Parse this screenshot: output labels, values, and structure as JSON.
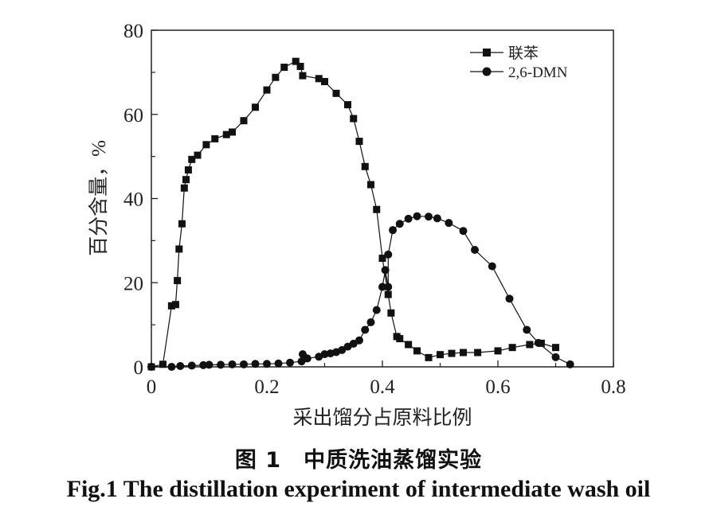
{
  "chart_data": {
    "type": "line",
    "xlabel": "采出馏分占原料比例",
    "ylabel": "百分含量，%",
    "xlim": [
      0,
      0.8
    ],
    "ylim": [
      0,
      80
    ],
    "x_ticks": [
      "0",
      "0.2",
      "0.4",
      "0.6",
      "0.8"
    ],
    "y_ticks": [
      "0",
      "20",
      "40",
      "60",
      "80"
    ],
    "legend_position": "top-right",
    "series": [
      {
        "name": "联苯",
        "marker": "square",
        "points": [
          [
            0.0,
            0.0
          ],
          [
            0.02,
            0.6
          ],
          [
            0.035,
            14.5
          ],
          [
            0.042,
            14.8
          ],
          [
            0.045,
            20.5
          ],
          [
            0.048,
            28.0
          ],
          [
            0.053,
            34.0
          ],
          [
            0.057,
            42.5
          ],
          [
            0.06,
            44.5
          ],
          [
            0.064,
            46.8
          ],
          [
            0.07,
            49.3
          ],
          [
            0.08,
            50.3
          ],
          [
            0.095,
            52.8
          ],
          [
            0.11,
            54.2
          ],
          [
            0.13,
            55.2
          ],
          [
            0.14,
            55.8
          ],
          [
            0.16,
            58.5
          ],
          [
            0.18,
            61.7
          ],
          [
            0.2,
            65.8
          ],
          [
            0.215,
            68.8
          ],
          [
            0.23,
            71.2
          ],
          [
            0.25,
            72.6
          ],
          [
            0.258,
            71.4
          ],
          [
            0.262,
            69.2
          ],
          [
            0.29,
            68.5
          ],
          [
            0.3,
            67.8
          ],
          [
            0.32,
            65.0
          ],
          [
            0.34,
            62.3
          ],
          [
            0.35,
            59.0
          ],
          [
            0.36,
            53.6
          ],
          [
            0.37,
            47.6
          ],
          [
            0.38,
            43.3
          ],
          [
            0.39,
            37.4
          ],
          [
            0.4,
            25.8
          ],
          [
            0.41,
            17.2
          ],
          [
            0.415,
            12.8
          ],
          [
            0.425,
            7.2
          ],
          [
            0.43,
            6.7
          ],
          [
            0.445,
            5.3
          ],
          [
            0.46,
            3.8
          ],
          [
            0.48,
            2.2
          ],
          [
            0.5,
            2.9
          ],
          [
            0.52,
            3.2
          ],
          [
            0.54,
            3.4
          ],
          [
            0.565,
            3.4
          ],
          [
            0.6,
            3.8
          ],
          [
            0.625,
            4.6
          ],
          [
            0.655,
            5.3
          ],
          [
            0.675,
            5.6
          ],
          [
            0.7,
            4.6
          ]
        ]
      },
      {
        "name": "2,6-DMN",
        "marker": "circle",
        "points": [
          [
            0.0,
            0.0
          ],
          [
            0.035,
            0.0
          ],
          [
            0.05,
            0.2
          ],
          [
            0.07,
            0.3
          ],
          [
            0.09,
            0.4
          ],
          [
            0.1,
            0.5
          ],
          [
            0.12,
            0.5
          ],
          [
            0.14,
            0.6
          ],
          [
            0.16,
            0.6
          ],
          [
            0.18,
            0.7
          ],
          [
            0.2,
            0.7
          ],
          [
            0.22,
            0.8
          ],
          [
            0.24,
            1.0
          ],
          [
            0.26,
            1.3
          ],
          [
            0.262,
            3.0
          ],
          [
            0.27,
            2.0
          ],
          [
            0.29,
            2.4
          ],
          [
            0.3,
            3.0
          ],
          [
            0.31,
            3.2
          ],
          [
            0.32,
            3.5
          ],
          [
            0.33,
            4.0
          ],
          [
            0.34,
            4.8
          ],
          [
            0.35,
            5.5
          ],
          [
            0.36,
            6.3
          ],
          [
            0.37,
            8.8
          ],
          [
            0.38,
            10.6
          ],
          [
            0.39,
            13.5
          ],
          [
            0.4,
            19.0
          ],
          [
            0.405,
            23.0
          ],
          [
            0.41,
            19.0
          ],
          [
            0.41,
            26.7
          ],
          [
            0.418,
            32.5
          ],
          [
            0.43,
            34.0
          ],
          [
            0.445,
            35.2
          ],
          [
            0.46,
            35.8
          ],
          [
            0.48,
            35.7
          ],
          [
            0.495,
            35.3
          ],
          [
            0.515,
            34.2
          ],
          [
            0.54,
            32.3
          ],
          [
            0.56,
            27.8
          ],
          [
            0.59,
            23.9
          ],
          [
            0.62,
            16.2
          ],
          [
            0.65,
            8.8
          ],
          [
            0.67,
            5.7
          ],
          [
            0.7,
            2.3
          ],
          [
            0.725,
            0.6
          ]
        ]
      }
    ]
  },
  "caption": {
    "chinese": "图 1　中质洗油蒸馏实验",
    "english": "Fig.1 The distillation experiment of intermediate wash oil"
  }
}
